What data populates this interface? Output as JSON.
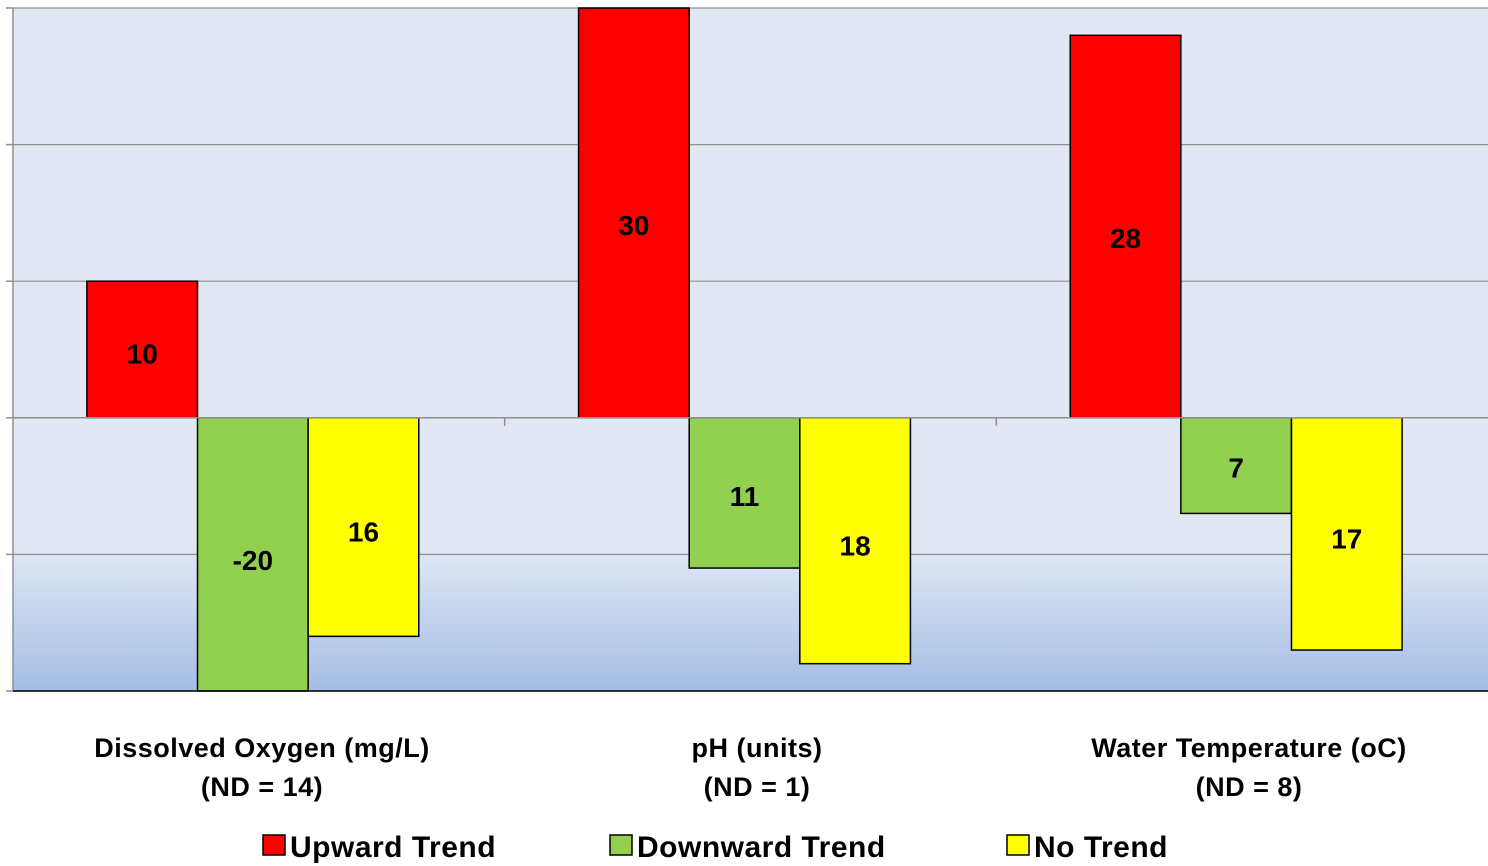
{
  "chart_data": {
    "type": "bar",
    "categories": [
      "Dissolved Oxygen (mg/L)",
      "pH (units)",
      "Water Temperature (oC)"
    ],
    "category_sublabels": [
      "(ND = 14)",
      "(ND = 1)",
      "(ND = 8)"
    ],
    "series": [
      {
        "name": "Upward Trend",
        "color": "#ff0000",
        "values": [
          10,
          30,
          28
        ],
        "labels": [
          "10",
          "30",
          "28"
        ]
      },
      {
        "name": "Downward Trend",
        "color": "#92d050",
        "values": [
          -20,
          -11,
          -7
        ],
        "labels": [
          "-20",
          "11",
          "7"
        ]
      },
      {
        "name": "No Trend",
        "color": "#ffff00",
        "values": [
          -16,
          -18,
          -17
        ],
        "labels": [
          "16",
          "18",
          "17"
        ]
      }
    ],
    "ylim": [
      -20,
      30
    ],
    "grid": true,
    "legend": "bottom",
    "xlabel": "",
    "ylabel": ""
  }
}
